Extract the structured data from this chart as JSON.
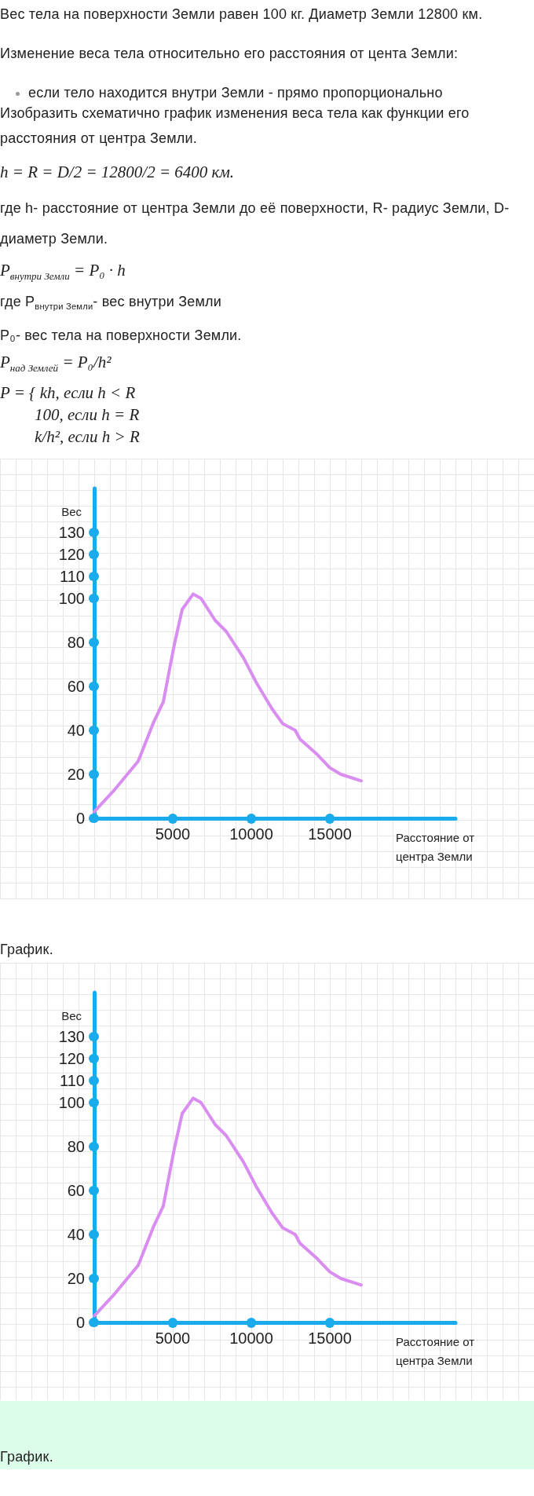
{
  "chart_data": [
    {
      "type": "line",
      "annotations": [
        "Вес тела на поверхности Земли равен 100 кг. Диаметр Земли 12800 км.",
        "Изменение веса тела относительно его расстояния от цента Земли:",
        "если тело находится внутри Земли - прямо пропорционально",
        "Изобразить схематично график изменения веса тела как функции его расстояния от центра Земли.",
        "h = R = D/2 = 12800/2 = 6400 км.",
        "где h- расстояние от центра Земли до её поверхности, R- радиус Земли, D- диаметр Земли.",
        "P$_{внутри Земли}$ = P₀ · h",
        "где P$_{внутри Земли}$- вес внутри Земли",
        "P₀- вес тела на поверхности Земли.",
        "P$_{над Землей}$ = P₀/h²",
        "P = { kh, если h < R\n100, если h = R\nk/h², если h > R"
      ],
      "xlabel": "Расстояние от центра Земли",
      "ylabel": "Вес",
      "x": [
        0,
        1300,
        2800,
        3800,
        4400,
        4800,
        5100,
        5600,
        6300,
        6800,
        7700,
        8400,
        9500,
        10300,
        11300,
        12000,
        12800,
        13100,
        14200,
        15000,
        15700,
        17000
      ],
      "values": [
        3,
        13,
        26,
        44,
        53,
        68,
        79,
        95,
        102,
        100,
        90,
        85,
        73,
        62,
        50,
        43,
        40,
        36,
        29,
        23,
        20,
        17
      ],
      "color": "#da8df0",
      "xlim": [
        0,
        23000
      ],
      "ylim": [
        0,
        150
      ],
      "xticks": [
        5000,
        10000,
        15000
      ],
      "yticks": [
        0,
        20,
        40,
        60,
        80,
        100,
        110,
        120,
        130
      ]
    },
    {
      "type": "line",
      "title": "График.",
      "annotations": [
        "График."
      ],
      "xlabel": "Расстояние от центра Земли",
      "ylabel": "Вес",
      "x": [
        0,
        1300,
        2800,
        3800,
        4400,
        4800,
        5100,
        5600,
        6300,
        6800,
        7700,
        8400,
        9500,
        10300,
        11300,
        12000,
        12800,
        13100,
        14200,
        15000,
        15700,
        17000
      ],
      "values": [
        3,
        13,
        26,
        44,
        53,
        68,
        79,
        95,
        102,
        100,
        90,
        85,
        73,
        62,
        50,
        43,
        40,
        36,
        29,
        23,
        20,
        17
      ],
      "color": "#da8df0",
      "xlim": [
        0,
        23000
      ],
      "ylim": [
        0,
        150
      ],
      "xticks": [
        5000,
        10000,
        15000
      ],
      "yticks": [
        0,
        20,
        40,
        60,
        80,
        100,
        110,
        120,
        130
      ]
    }
  ]
}
